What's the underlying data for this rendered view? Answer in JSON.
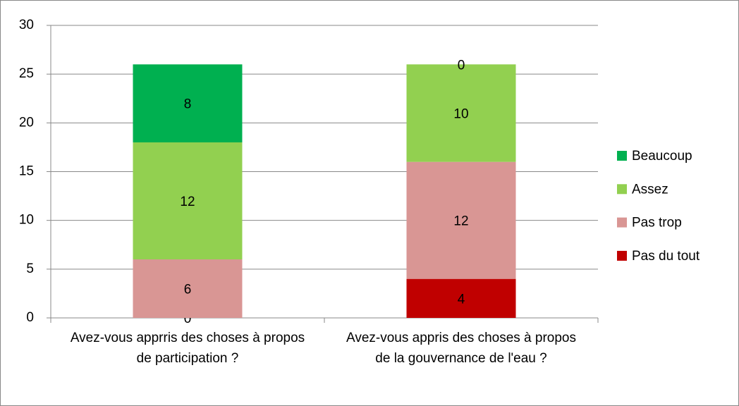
{
  "chart_data": {
    "type": "stacked_bar",
    "categories": [
      "Avez-vous apprris des choses à propos de participation ?",
      "Avez-vous appris des choses à propos de la gouvernance de l'eau ?"
    ],
    "series": [
      {
        "name": "Pas du tout",
        "color": "#c00000",
        "values": [
          0,
          4
        ]
      },
      {
        "name": "Pas trop",
        "color": "#d99694",
        "values": [
          6,
          12
        ]
      },
      {
        "name": "Assez",
        "color": "#92d050",
        "values": [
          12,
          10
        ]
      },
      {
        "name": "Beaucoup",
        "color": "#00b050",
        "values": [
          8,
          0
        ]
      }
    ],
    "ylim": [
      0,
      30
    ],
    "yticks": [
      0,
      5,
      10,
      15,
      20,
      25,
      30
    ],
    "grid": true,
    "legend": "right"
  }
}
